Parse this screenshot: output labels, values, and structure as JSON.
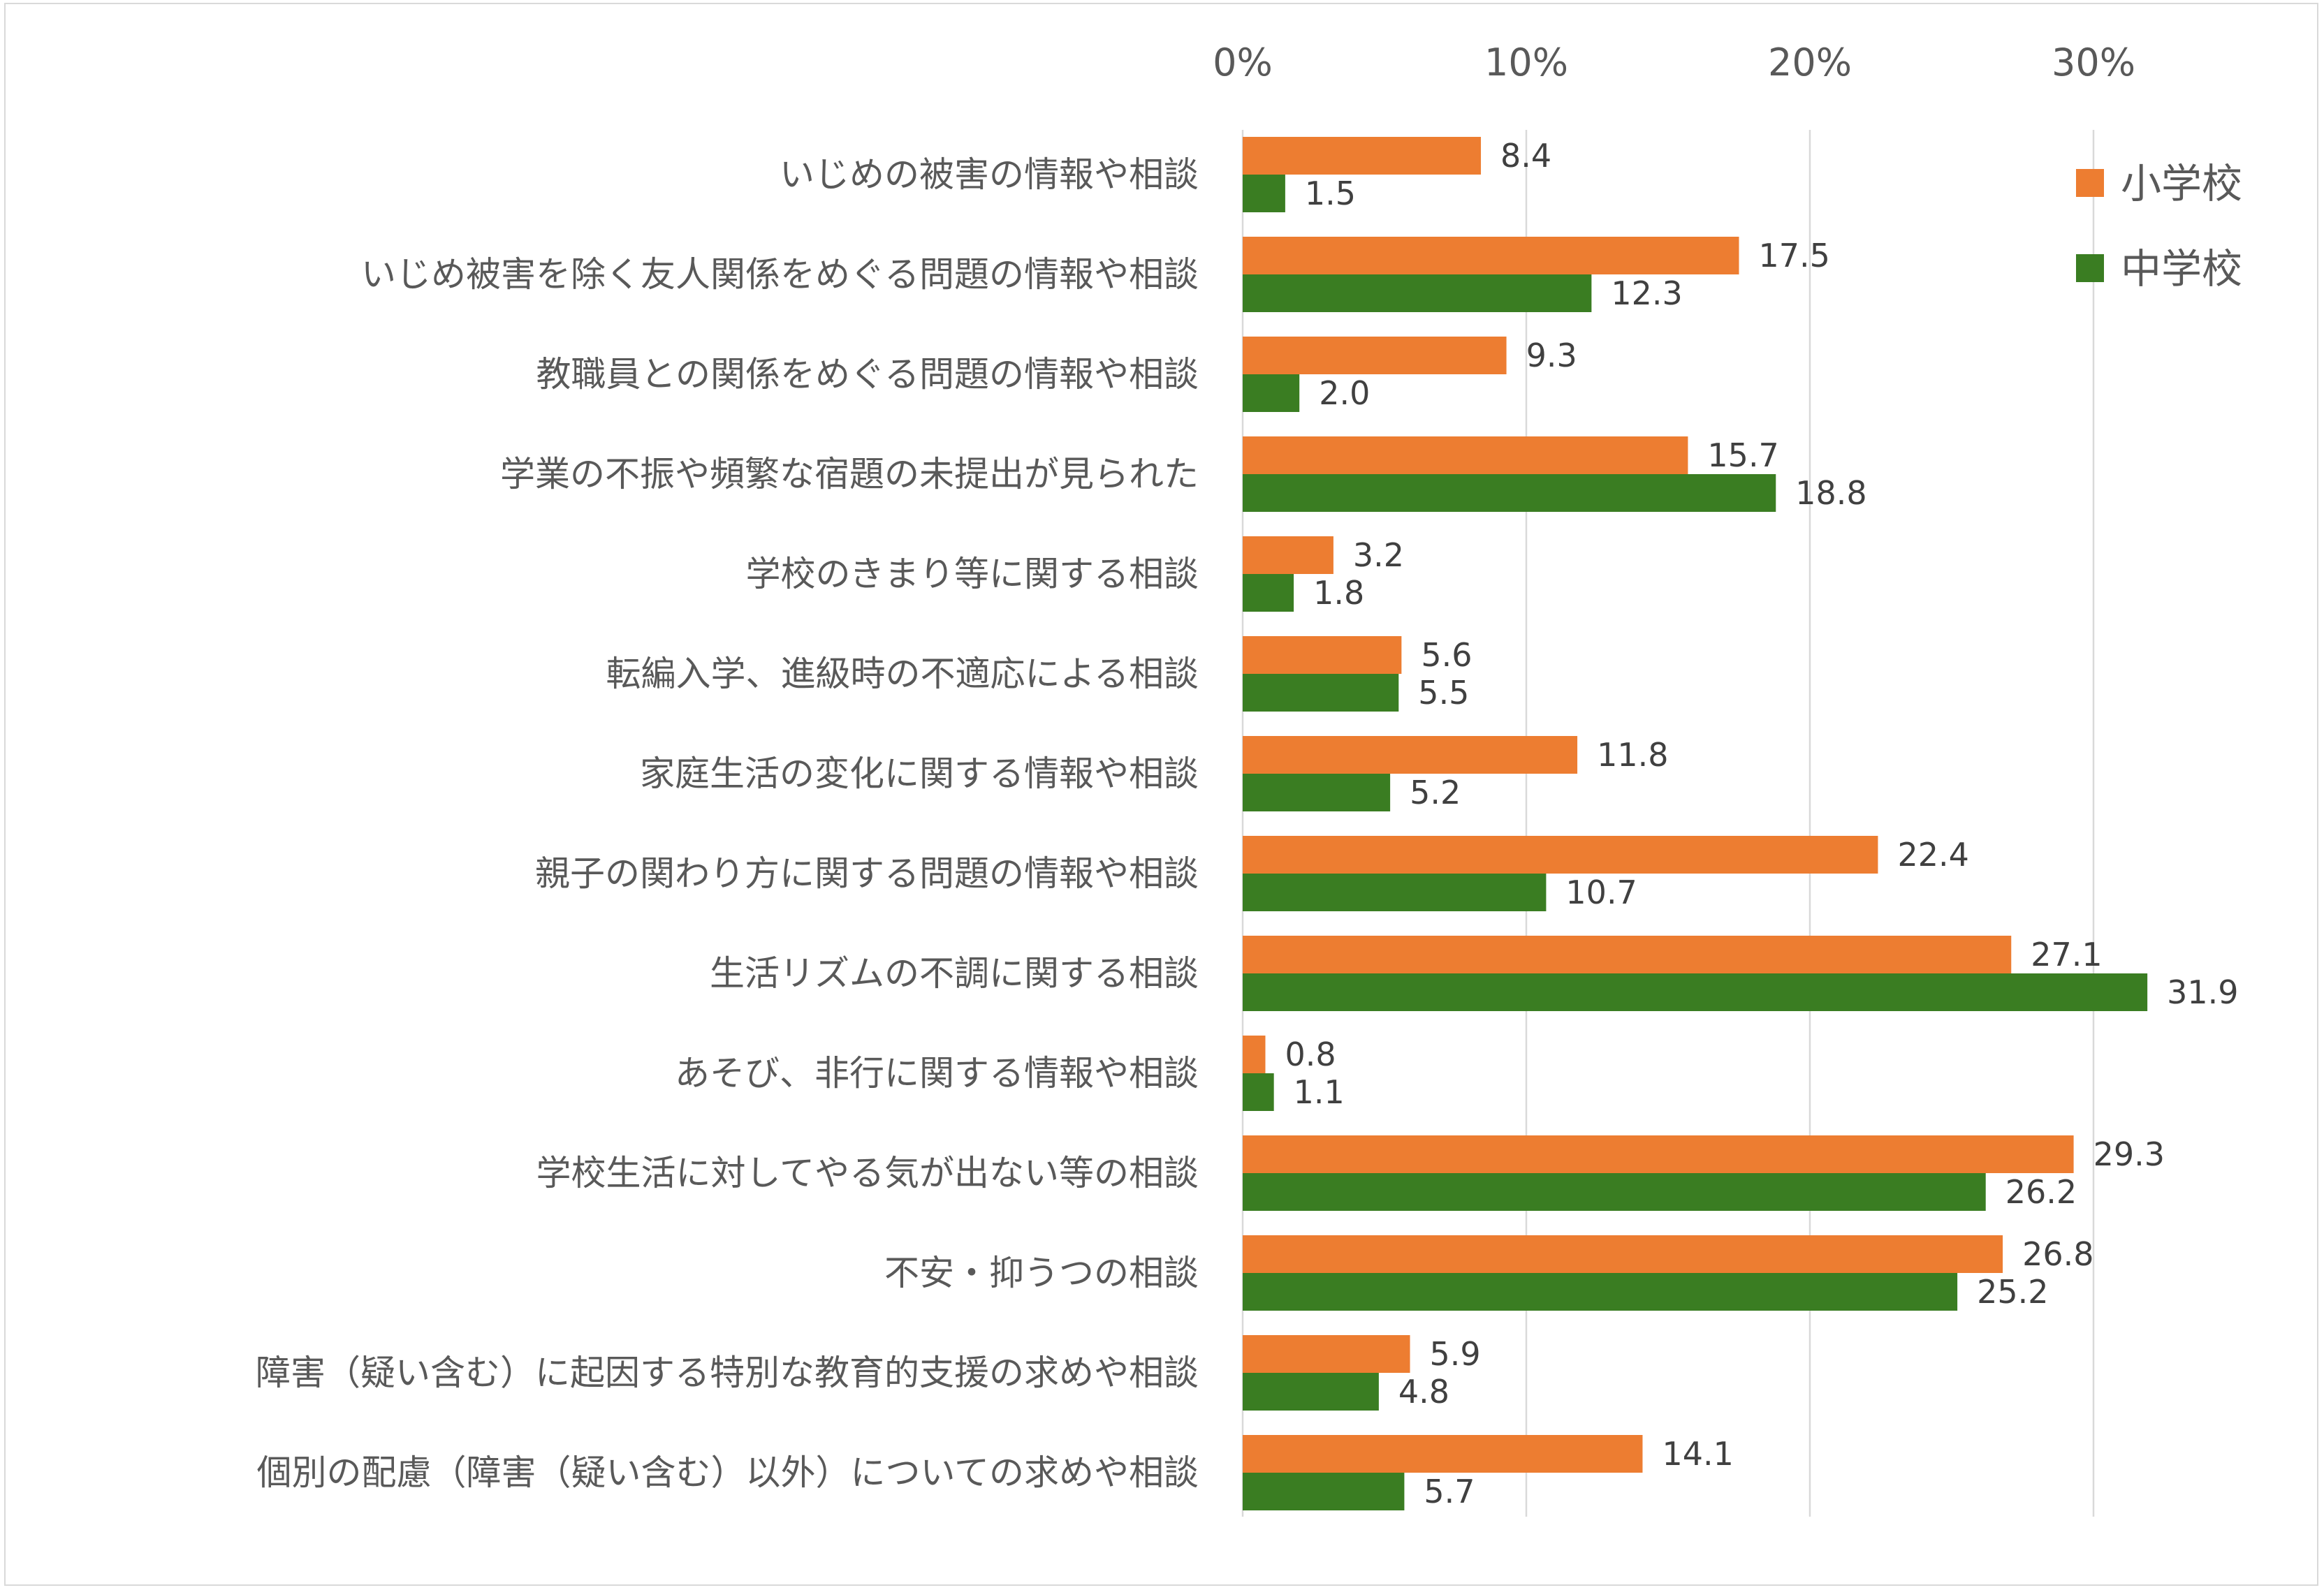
{
  "chart_data": {
    "type": "bar",
    "orientation": "horizontal",
    "title": "",
    "xlabel": "",
    "ylabel": "",
    "xlim": [
      0,
      35
    ],
    "xticks": [
      0,
      10,
      20,
      30
    ],
    "xtick_labels": [
      "0%",
      "10%",
      "20%",
      "30%"
    ],
    "grid": true,
    "legend_position": "top-right",
    "categories": [
      "いじめの被害の情報や相談",
      "いじめ被害を除く友人関係をめぐる問題の情報や相談",
      "教職員との関係をめぐる問題の情報や相談",
      "学業の不振や頻繁な宿題の未提出が見られた",
      "学校のきまり等に関する相談",
      "転編入学、進級時の不適応による相談",
      "家庭生活の変化に関する情報や相談",
      "親子の関わり方に関する問題の情報や相談",
      "生活リズムの不調に関する相談",
      "あそび、非行に関する情報や相談",
      "学校生活に対してやる気が出ない等の相談",
      "不安・抑うつの相談",
      "障害（疑い含む）に起因する特別な教育的支援の求めや相談",
      "個別の配慮（障害（疑い含む）以外）についての求めや相談"
    ],
    "series": [
      {
        "name": "小学校",
        "color": "#ED7D31",
        "values": [
          8.4,
          17.5,
          9.3,
          15.7,
          3.2,
          5.6,
          11.8,
          22.4,
          27.1,
          0.8,
          29.3,
          26.8,
          5.9,
          14.1
        ],
        "labels": [
          "8.4",
          "17.5",
          "9.3",
          "15.7",
          "3.2",
          "5.6",
          "11.8",
          "22.4",
          "27.1",
          "0.8",
          "29.3",
          "26.8",
          "5.9",
          "14.1"
        ]
      },
      {
        "name": "中学校",
        "color": "#3A7D22",
        "values": [
          1.5,
          12.3,
          2.0,
          18.8,
          1.8,
          5.5,
          5.2,
          10.7,
          31.9,
          1.1,
          26.2,
          25.2,
          4.8,
          5.7
        ],
        "labels": [
          "1.5",
          "12.3",
          "2.0",
          "18.8",
          "1.8",
          "5.5",
          "5.2",
          "10.7",
          "31.9",
          "1.1",
          "26.2",
          "25.2",
          "4.8",
          "5.7"
        ]
      }
    ]
  }
}
